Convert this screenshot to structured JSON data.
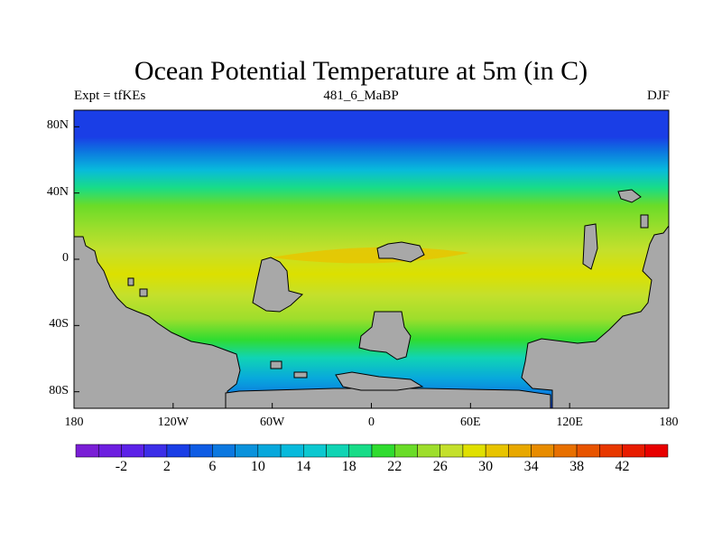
{
  "title": "Ocean Potential Temperature at 5m (in C)",
  "subtitle_left": "Expt = tfKEs",
  "subtitle_center": "481_6_MaBP",
  "subtitle_right": "DJF",
  "y_tick_labels": [
    "80N",
    "40N",
    "0",
    "40S",
    "80S"
  ],
  "x_tick_labels": [
    "180",
    "120W",
    "60W",
    "0",
    "60E",
    "120E",
    "180"
  ],
  "colorbar": {
    "tick_labels": [
      "-2",
      "2",
      "6",
      "10",
      "14",
      "18",
      "22",
      "26",
      "30",
      "34",
      "38",
      "42"
    ],
    "colors": [
      "#7a1fd6",
      "#6d1fe0",
      "#5c22e8",
      "#3c2ee8",
      "#1a3ee6",
      "#0f5ce4",
      "#0c78e0",
      "#0a92dc",
      "#08a8dc",
      "#08badc",
      "#0cc8d0",
      "#10d4b4",
      "#18dc88",
      "#30dc30",
      "#6adc28",
      "#9ede2c",
      "#c4e02c",
      "#e0e000",
      "#e8c400",
      "#e8a800",
      "#e88c00",
      "#e87000",
      "#e85400",
      "#e83800",
      "#e81c00",
      "#e80000"
    ]
  },
  "map": {
    "land_color": "#a8a8a8",
    "lat_range": [
      -90,
      90
    ],
    "lon_range": [
      -180,
      180
    ]
  }
}
